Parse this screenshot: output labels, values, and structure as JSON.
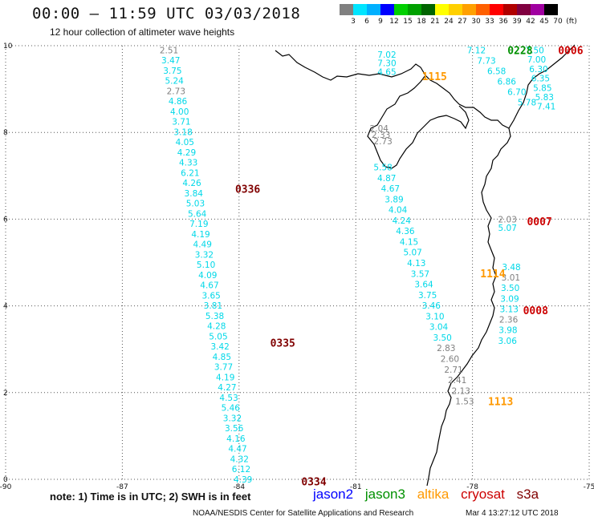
{
  "header": {
    "title": "00:00 – 11:59 UTC 03/03/2018",
    "subtitle": "12 hour collection of altimeter wave heights"
  },
  "colorbar": {
    "labels": [
      "3",
      "6",
      "9",
      "12",
      "15",
      "18",
      "21",
      "24",
      "27",
      "30",
      "33",
      "36",
      "39",
      "42",
      "45",
      "70",
      "(ft)"
    ],
    "colors": [
      "#808080",
      "#00e5ff",
      "#00b0ff",
      "#0000ff",
      "#00d000",
      "#00a000",
      "#006400",
      "#ffff00",
      "#ffd000",
      "#ffa000",
      "#ff6000",
      "#ff0000",
      "#b00000",
      "#800040",
      "#a000a0",
      "#000000"
    ]
  },
  "axes": {
    "x_ticks": [
      "-90",
      "-87",
      "-84",
      "-81",
      "-78",
      "-75"
    ],
    "y_ticks": [
      "0",
      "2",
      "4",
      "6",
      "8",
      "10"
    ]
  },
  "colors": {
    "cyan": "#00d8e8",
    "gray": "#808080",
    "jason2": "#0000ff",
    "jason3": "#009000",
    "altika": "#ff9900",
    "cryosat": "#cc0000",
    "s3a": "#800000"
  },
  "tracks": [
    {
      "lon0": -85.8,
      "lat0": 9.9,
      "lon1": -83.9,
      "lat1": 0.0,
      "values": [
        "2.51",
        "3.47",
        "3.75",
        "5.24",
        "2.73",
        "4.86",
        "4.00",
        "3.71",
        "3.18",
        "4.05",
        "4.29",
        "4.33",
        "6.21",
        "4.26",
        "3.84",
        "5.03",
        "5.64",
        "7.19",
        "4.19",
        "4.49",
        "3.32",
        "5.10",
        "4.09",
        "4.67",
        "3.65",
        "3.81",
        "5.38",
        "4.28",
        "5.05",
        "3.42",
        "4.85",
        "3.77",
        "4.19",
        "4.27",
        "4.53",
        "5.46",
        "3.32",
        "3.56",
        "4.16",
        "4.47",
        "4.32",
        "6.12",
        "4.39"
      ],
      "gray_idx": [
        0,
        4
      ]
    },
    {
      "lon0": -80.2,
      "lat0": 9.8,
      "lon1": -80.2,
      "lat1": 9.4,
      "values": [
        "7.02",
        "7.30",
        "4.65"
      ],
      "gray_idx": []
    },
    {
      "lon0": -80.4,
      "lat0": 8.1,
      "lon1": -80.3,
      "lat1": 7.8,
      "values": [
        "2.04",
        "2.33",
        "2.73"
      ],
      "gray_idx": [
        0,
        1,
        2
      ]
    },
    {
      "lon0": -80.3,
      "lat0": 7.2,
      "lon1": -78.2,
      "lat1": 1.8,
      "values": [
        "5.58",
        "4.87",
        "4.67",
        "3.89",
        "4.04",
        "4.24",
        "4.36",
        "4.15",
        "5.07",
        "4.13",
        "3.57",
        "3.64",
        "3.75",
        "3.46",
        "3.10",
        "3.04",
        "3.50",
        "2.83",
        "2.60",
        "2.71",
        "2.41",
        "2.13",
        "1.53"
      ],
      "gray_idx": [
        17,
        18,
        19,
        20,
        21,
        22
      ]
    },
    {
      "lon0": -77.9,
      "lat0": 9.9,
      "lon1": -76.6,
      "lat1": 8.7,
      "values": [
        "7.12",
        "7.73",
        "6.58",
        "6.86",
        "6.70",
        "5.78"
      ],
      "gray_idx": []
    },
    {
      "lon0": -76.4,
      "lat0": 9.9,
      "lon1": -76.1,
      "lat1": 8.6,
      "values": [
        "7.50",
        "7.00",
        "6.30",
        "6.35",
        "5.85",
        "5.83",
        "7.41"
      ],
      "gray_idx": []
    },
    {
      "lon0": -77.1,
      "lat0": 6.0,
      "lon1": -77.1,
      "lat1": 5.8,
      "values": [
        "2.03",
        "5.07"
      ],
      "gray_idx": [
        0
      ]
    },
    {
      "lon0": -77.0,
      "lat0": 4.9,
      "lon1": -77.1,
      "lat1": 3.2,
      "values": [
        "3.48",
        "3.01",
        "3.50",
        "3.09",
        "3.13",
        "2.36",
        "3.98",
        "3.06"
      ],
      "gray_idx": [
        1,
        5
      ]
    }
  ],
  "passes": [
    {
      "label": "0228",
      "lon": -77.1,
      "lat": 9.9,
      "sat": "jason3"
    },
    {
      "label": "0006",
      "lon": -75.8,
      "lat": 9.9,
      "sat": "cryosat"
    },
    {
      "label": "1115",
      "lon": -79.3,
      "lat": 9.3,
      "sat": "altika"
    },
    {
      "label": "0336",
      "lon": -84.1,
      "lat": 6.7,
      "sat": "s3a"
    },
    {
      "label": "0007",
      "lon": -76.6,
      "lat": 5.95,
      "sat": "cryosat"
    },
    {
      "label": "1114",
      "lon": -77.8,
      "lat": 4.75,
      "sat": "altika"
    },
    {
      "label": "0008",
      "lon": -76.7,
      "lat": 3.9,
      "sat": "cryosat"
    },
    {
      "label": "0335",
      "lon": -83.2,
      "lat": 3.15,
      "sat": "s3a"
    },
    {
      "label": "1113",
      "lon": -77.6,
      "lat": 1.8,
      "sat": "altika"
    },
    {
      "label": "0334",
      "lon": -82.4,
      "lat": -0.05,
      "sat": "s3a"
    }
  ],
  "footer": {
    "note": "note:  1) Time is in UTC;  2) SWH is in feet",
    "legend": {
      "jason2": "jason2",
      "jason3": "jason3",
      "altika": "altika",
      "cryosat": "cryosat",
      "s3a": "s3a"
    },
    "credit": "NOAA/NESDIS Center for Satellite Applications and Research",
    "generated": "Mar  4 13:27:12 UTC 2018"
  }
}
